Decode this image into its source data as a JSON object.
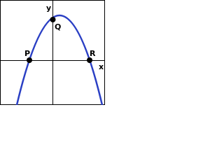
{
  "axes": {
    "x": "x",
    "y": "y"
  },
  "points": [
    {
      "label": "P"
    },
    {
      "label": "Q"
    },
    {
      "label": "R"
    }
  ]
}
